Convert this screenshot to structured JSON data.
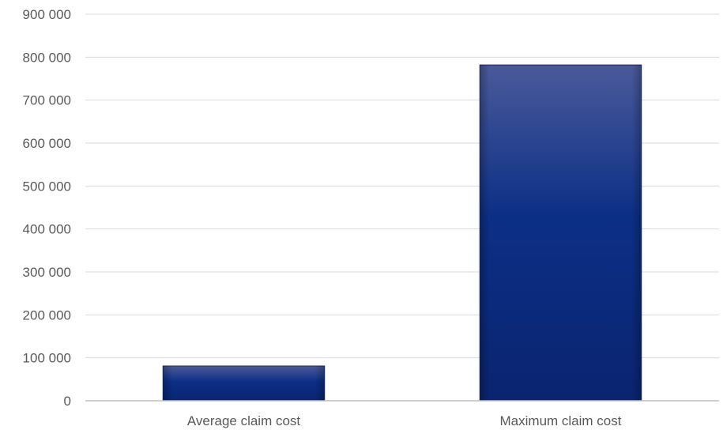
{
  "chart_data": {
    "type": "bar",
    "categories": [
      "Average claim cost",
      "Maximum claim cost"
    ],
    "values": [
      81000,
      782000
    ],
    "ylim": [
      0,
      900000
    ],
    "yticks": [
      0,
      100000,
      200000,
      300000,
      400000,
      500000,
      600000,
      700000,
      800000,
      900000
    ],
    "ytick_labels": [
      "0",
      "100 000",
      "200 000",
      "300 000",
      "400 000",
      "500 000",
      "600 000",
      "700 000",
      "800 000",
      "900 000"
    ],
    "grid": true,
    "colors": {
      "bar_light": "#4a5a9a",
      "bar_mid": "#0c2f86",
      "bar_dark": "#0a2470",
      "grid": "#d9d9d9",
      "axis": "#bfbfbf"
    }
  }
}
